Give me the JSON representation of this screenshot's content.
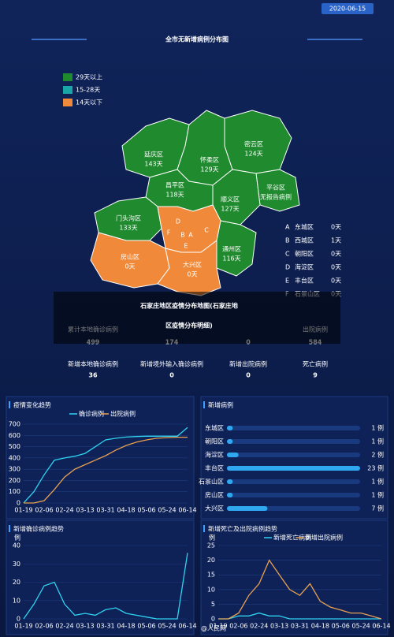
{
  "date": "2020-06-15",
  "title": "全市无新增病例分布图",
  "legend": [
    {
      "label": "29天以上",
      "color": "#1f8a2e"
    },
    {
      "label": "15-28天",
      "color": "#1aa6a6"
    },
    {
      "label": "14天以下",
      "color": "#f08a3a"
    }
  ],
  "districts": [
    {
      "name": "延庆区",
      "days": "143天",
      "status": 0
    },
    {
      "name": "怀柔区",
      "days": "129天",
      "status": 0
    },
    {
      "name": "密云区",
      "days": "124天",
      "status": 0
    },
    {
      "name": "平谷区",
      "days": "无报告病例",
      "status": 0
    },
    {
      "name": "顺义区",
      "days": "127天",
      "status": 0
    },
    {
      "name": "昌平区",
      "days": "118天",
      "status": 0
    },
    {
      "name": "门头沟区",
      "days": "133天",
      "status": 0
    },
    {
      "name": "通州区",
      "days": "116天",
      "status": 0
    },
    {
      "name": "房山区",
      "days": "0天",
      "status": 2
    },
    {
      "name": "大兴区",
      "days": "0天",
      "status": 2
    }
  ],
  "core": [
    {
      "key": "A",
      "name": "东城区",
      "days": "0天"
    },
    {
      "key": "B",
      "name": "西城区",
      "days": "1天"
    },
    {
      "key": "C",
      "name": "朝阳区",
      "days": "0天"
    },
    {
      "key": "D",
      "name": "海淀区",
      "days": "0天"
    },
    {
      "key": "E",
      "name": "丰台区",
      "days": "0天"
    },
    {
      "key": "F",
      "name": "石景山区",
      "days": "0天"
    }
  ],
  "caption": [
    "石家庄地区疫情分布地图(石家庄地",
    "区疫情分布明细)"
  ],
  "stats": [
    {
      "label": "累计本地确诊病例",
      "value": 499,
      "color": "#3ec6e8"
    },
    {
      "value": 174,
      "color": "#c06ad6"
    },
    {
      "value": 0,
      "color": "#3ec6e8"
    },
    {
      "label": "出院病例",
      "value": 584,
      "color": "#f0943a"
    },
    {
      "label": "新增本地确诊病例",
      "value": 36,
      "color": "#3ec6e8"
    },
    {
      "label": "新增境外输入确诊病例",
      "value": 0,
      "color": "#c06ad6"
    },
    {
      "label": "新增出院病例",
      "value": 0,
      "color": "#3ec6e8"
    },
    {
      "label": "死亡病例",
      "value": 9,
      "color": "#f0943a"
    }
  ],
  "source": "@人民网",
  "chart_data": [
    {
      "type": "line",
      "title": "疫情变化趋势",
      "categories": [
        "01-19",
        null,
        "02-06",
        null,
        "02-24",
        null,
        "03-13",
        null,
        "03-31",
        null,
        "04-18",
        null,
        "05-06",
        null,
        "05-24",
        null,
        "06-14"
      ],
      "series": [
        {
          "name": "确诊病例",
          "color": "#2fd3f0",
          "values": [
            0,
            100,
            250,
            380,
            400,
            415,
            440,
            500,
            560,
            575,
            585,
            590,
            593,
            593,
            593,
            593,
            670
          ]
        },
        {
          "name": "出院病例",
          "color": "#e8a050",
          "values": [
            0,
            0,
            20,
            120,
            230,
            300,
            340,
            380,
            420,
            470,
            510,
            540,
            560,
            575,
            580,
            584,
            584
          ]
        }
      ],
      "ylim": [
        0,
        700
      ],
      "yticks": [
        0,
        100,
        200,
        300,
        400,
        500,
        600,
        700
      ],
      "grid": true
    },
    {
      "type": "hbar",
      "title": "新增病例",
      "categories": [
        "东城区",
        "朝阳区",
        "海淀区",
        "丰台区",
        "石景山区",
        "房山区",
        "大兴区"
      ],
      "values": [
        1,
        1,
        2,
        23,
        1,
        1,
        7
      ],
      "value_labels": [
        "1 例",
        "1 例",
        "2 例",
        "23 例",
        "1 例",
        "1 例",
        "7 例"
      ],
      "color": "#2fa8f0",
      "xlim": [
        0,
        23
      ]
    },
    {
      "type": "line",
      "title": "新增确诊病例趋势",
      "y_label": "例",
      "categories": [
        "01-19",
        null,
        "02-06",
        null,
        "02-24",
        null,
        "03-13",
        null,
        "03-31",
        null,
        "04-18",
        null,
        "05-06",
        null,
        "05-24",
        null,
        "06-14"
      ],
      "series": [
        {
          "name": "新增确诊病例",
          "color": "#2fd3f0",
          "values": [
            0,
            8,
            18,
            20,
            8,
            2,
            3,
            2,
            5,
            6,
            3,
            2,
            1,
            0,
            0,
            0,
            36
          ]
        }
      ],
      "ylim": [
        0,
        40
      ],
      "yticks": [
        0,
        10,
        20,
        30,
        40
      ],
      "grid": true
    },
    {
      "type": "line",
      "title": "新增死亡及出院病例趋势",
      "y_label": "例",
      "categories": [
        "01-19",
        null,
        "02-06",
        null,
        "02-24",
        null,
        "03-13",
        null,
        "03-31",
        null,
        "04-18",
        null,
        "05-06",
        null,
        "05-24",
        null,
        "06-14"
      ],
      "series": [
        {
          "name": "新增死亡病例",
          "color": "#2fd3f0",
          "values": [
            0,
            0,
            1,
            1,
            2,
            1,
            1,
            0,
            0,
            0,
            0,
            0,
            0,
            0,
            0,
            0,
            0
          ]
        },
        {
          "name": "新增出院病例",
          "color": "#e8a050",
          "values": [
            0,
            0,
            2,
            8,
            12,
            20,
            15,
            10,
            8,
            12,
            6,
            4,
            3,
            2,
            2,
            1,
            0
          ]
        }
      ],
      "ylim": [
        0,
        25
      ],
      "yticks": [
        0,
        5,
        10,
        15,
        20,
        25
      ],
      "grid": true
    }
  ]
}
